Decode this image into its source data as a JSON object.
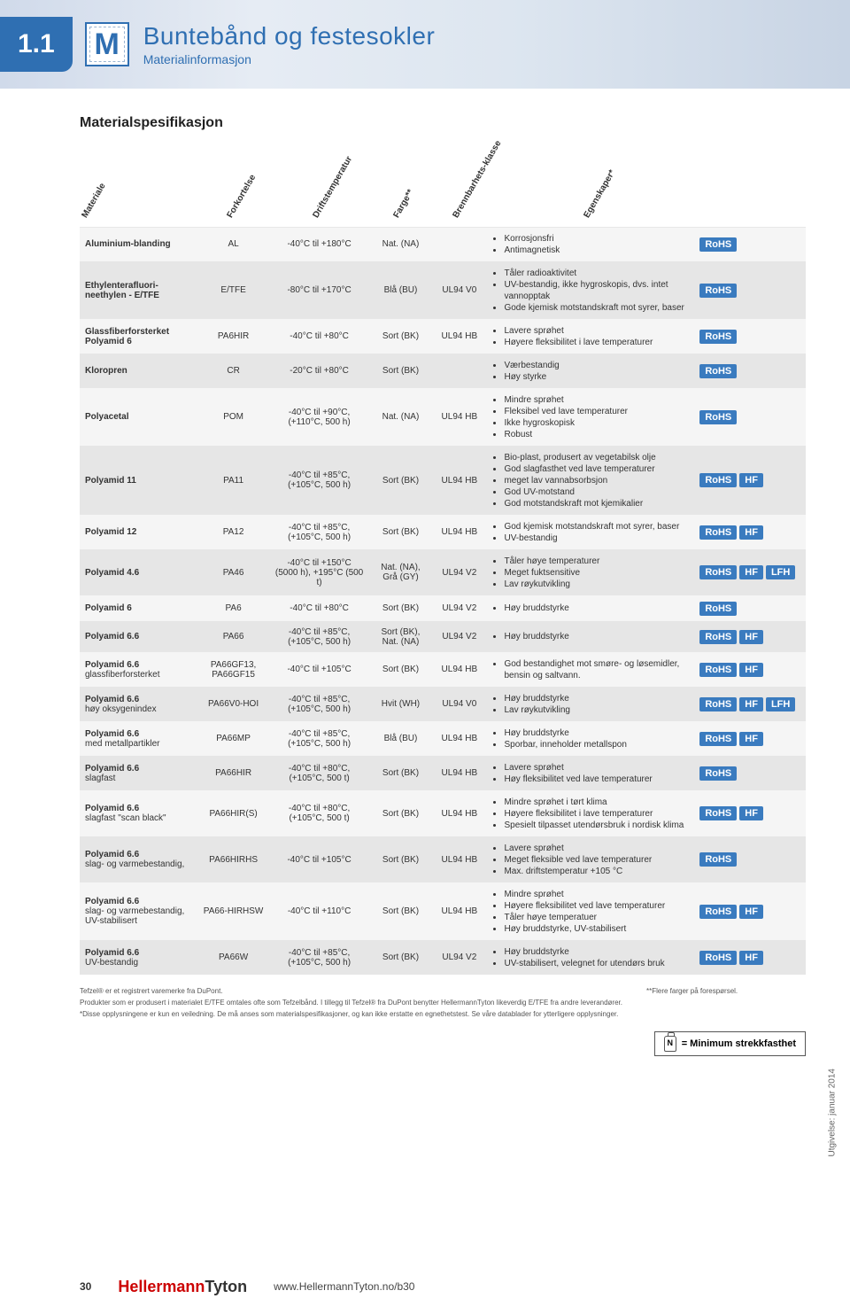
{
  "chapter": "1.1",
  "icon_letter": "M",
  "header": {
    "title": "Buntebånd og festesokler",
    "subtitle": "Materialinformasjon"
  },
  "section_title": "Materialspesifikasjon",
  "columns": {
    "materiale": "Materiale",
    "forkortelse": "Forkortelse",
    "driftstemperatur": "Driftstemperatur",
    "farge": "Farge**",
    "brennbarhet": "Brennbarhets-klasse",
    "egenskaper": "Egenskaper*"
  },
  "badges": {
    "rohs": "RoHS",
    "hf": "HF",
    "lfh": "LFH"
  },
  "rows": [
    {
      "shade": "a",
      "mat": "Aluminium-blanding",
      "fork": "AL",
      "drift": "-40°C til +180°C",
      "farge": "Nat. (NA)",
      "brenn": "",
      "egen": [
        "Korrosjonsfri",
        "Antimagnetisk"
      ],
      "b": [
        "rohs"
      ]
    },
    {
      "shade": "b",
      "mat": "Ethylenterafluori-neethylen - E/TFE",
      "fork": "E/TFE",
      "drift": "-80°C til +170°C",
      "farge": "Blå (BU)",
      "brenn": "UL94 V0",
      "egen": [
        "Tåler radioaktivitet",
        "UV-bestandig, ikke hygroskopis, dvs. intet vannopptak",
        "Gode kjemisk motstandskraft mot syrer, baser"
      ],
      "b": [
        "rohs"
      ]
    },
    {
      "shade": "a",
      "mat": "Glassfiberforsterket Polyamid 6",
      "fork": "PA6HIR",
      "drift": "-40°C til +80°C",
      "farge": "Sort (BK)",
      "brenn": "UL94 HB",
      "egen": [
        "Lavere sprøhet",
        "Høyere fleksibilitet i lave temperaturer"
      ],
      "b": [
        "rohs"
      ]
    },
    {
      "shade": "b",
      "mat": "Kloropren",
      "fork": "CR",
      "drift": "-20°C til +80°C",
      "farge": "Sort (BK)",
      "brenn": "",
      "egen": [
        "Værbestandig",
        "Høy styrke"
      ],
      "b": [
        "rohs"
      ]
    },
    {
      "shade": "a",
      "mat": "Polyacetal",
      "fork": "POM",
      "drift": "-40°C til +90°C, (+110°C, 500 h)",
      "farge": "Nat. (NA)",
      "brenn": "UL94 HB",
      "egen": [
        "Mindre sprøhet",
        "Fleksibel ved lave temperaturer",
        "Ikke hygroskopisk",
        "Robust"
      ],
      "b": [
        "rohs"
      ]
    },
    {
      "shade": "b",
      "mat": "Polyamid 11",
      "fork": "PA11",
      "drift": "-40°C til +85°C, (+105°C, 500 h)",
      "farge": "Sort (BK)",
      "brenn": "UL94 HB",
      "egen": [
        "Bio-plast, produsert av vegetabilsk olje",
        "God slagfasthet ved lave temperaturer",
        "meget lav vannabsorbsjon",
        "God UV-motstand",
        "God motstandskraft mot kjemikalier"
      ],
      "b": [
        "rohs",
        "hf"
      ]
    },
    {
      "shade": "a",
      "mat": "Polyamid 12",
      "fork": "PA12",
      "drift": "-40°C til +85°C, (+105°C, 500 h)",
      "farge": "Sort (BK)",
      "brenn": "UL94 HB",
      "egen": [
        "God kjemisk motstandskraft mot syrer, baser",
        "UV-bestandig"
      ],
      "b": [
        "rohs",
        "hf"
      ]
    },
    {
      "shade": "b",
      "mat": "Polyamid 4.6",
      "fork": "PA46",
      "drift": "-40°C til +150°C (5000 h), +195°C (500 t)",
      "farge": "Nat. (NA), Grå (GY)",
      "brenn": "UL94 V2",
      "egen": [
        "Tåler høye temperaturer",
        "Meget fuktsensitive",
        "Lav røykutvikling"
      ],
      "b": [
        "rohs",
        "hf",
        "lfh"
      ]
    },
    {
      "shade": "a",
      "mat": "Polyamid 6",
      "fork": "PA6",
      "drift": "-40°C til +80°C",
      "farge": "Sort (BK)",
      "brenn": "UL94 V2",
      "egen": [
        "Høy bruddstyrke"
      ],
      "b": [
        "rohs"
      ]
    },
    {
      "shade": "b",
      "mat": "Polyamid 6.6",
      "fork": "PA66",
      "drift": "-40°C til +85°C, (+105°C, 500 h)",
      "farge": "Sort (BK), Nat. (NA)",
      "brenn": "UL94 V2",
      "egen": [
        "Høy bruddstyrke"
      ],
      "b": [
        "rohs",
        "hf"
      ]
    },
    {
      "shade": "a",
      "mat": "Polyamid 6.6",
      "sub": "glassfiberforsterket",
      "fork": "PA66GF13, PA66GF15",
      "drift": "-40°C til +105°C",
      "farge": "Sort (BK)",
      "brenn": "UL94 HB",
      "egen": [
        "God bestandighet mot smøre- og løsemidler, bensin og saltvann."
      ],
      "b": [
        "rohs",
        "hf"
      ]
    },
    {
      "shade": "b",
      "mat": "Polyamid 6.6",
      "sub": "høy oksygenindex",
      "fork": "PA66V0-HOI",
      "drift": "-40°C til +85°C, (+105°C, 500 h)",
      "farge": "Hvit (WH)",
      "brenn": "UL94 V0",
      "egen": [
        "Høy bruddstyrke",
        "Lav røykutvikling"
      ],
      "b": [
        "rohs",
        "hf",
        "lfh"
      ]
    },
    {
      "shade": "a",
      "mat": "Polyamid 6.6",
      "sub": "med metallpartikler",
      "fork": "PA66MP",
      "drift": "-40°C til +85°C, (+105°C, 500 h)",
      "farge": "Blå (BU)",
      "brenn": "UL94 HB",
      "egen": [
        "Høy bruddstyrke",
        "Sporbar, inneholder metallspon"
      ],
      "b": [
        "rohs",
        "hf"
      ]
    },
    {
      "shade": "b",
      "mat": "Polyamid 6.6",
      "sub": "slagfast",
      "fork": "PA66HIR",
      "drift": "-40°C til +80°C, (+105°C, 500 t)",
      "farge": "Sort (BK)",
      "brenn": "UL94 HB",
      "egen": [
        "Lavere sprøhet",
        "Høy fleksibilitet ved lave temperaturer"
      ],
      "b": [
        "rohs"
      ]
    },
    {
      "shade": "a",
      "mat": "Polyamid 6.6",
      "sub": "slagfast \"scan black\"",
      "fork": "PA66HIR(S)",
      "drift": "-40°C til +80°C, (+105°C, 500 t)",
      "farge": "Sort (BK)",
      "brenn": "UL94 HB",
      "egen": [
        "Mindre sprøhet i tørt klima",
        "Høyere fleksibilitet i lave temperaturer",
        "Spesielt tilpasset utendørsbruk i nordisk klima"
      ],
      "b": [
        "rohs",
        "hf"
      ]
    },
    {
      "shade": "b",
      "mat": "Polyamid 6.6",
      "sub": "slag- og varmebestandig,",
      "fork": "PA66HIRHS",
      "drift": "-40°C til +105°C",
      "farge": "Sort (BK)",
      "brenn": "UL94 HB",
      "egen": [
        "Lavere sprøhet",
        "Meget fleksible ved lave temperaturer",
        "Max. driftstemperatur +105 °C"
      ],
      "b": [
        "rohs"
      ]
    },
    {
      "shade": "a",
      "mat": "Polyamid 6.6",
      "sub": "slag- og varmebestandig, UV-stabilisert",
      "fork": "PA66-HIRHSW",
      "drift": "-40°C til +110°C",
      "farge": "Sort (BK)",
      "brenn": "UL94 HB",
      "egen": [
        "Mindre sprøhet",
        "Høyere fleksibilitet ved lave temperaturer",
        "Tåler høye temperatuer",
        "Høy bruddstyrke, UV-stabilisert"
      ],
      "b": [
        "rohs",
        "hf"
      ]
    },
    {
      "shade": "b",
      "mat": "Polyamid 6.6",
      "sub": "UV-bestandig",
      "fork": "PA66W",
      "drift": "-40°C til +85°C, (+105°C, 500 h)",
      "farge": "Sort (BK)",
      "brenn": "UL94 V2",
      "egen": [
        "Høy bruddstyrke",
        "UV-stabilisert, velegnet for utendørs bruk"
      ],
      "b": [
        "rohs",
        "hf"
      ]
    }
  ],
  "footnotes": {
    "tefzel": "Tefzel® er et registrert varemerke fra DuPont.",
    "prod": "Produkter som er produsert i materialet E/TFE omtales ofte som Tefzelbånd. I tillegg til Tefzel® fra DuPont benytter HellermannTyton likeverdig E/TFE fra andre leverandører.",
    "star": "*Disse opplysningene er kun en veiledning. De må anses som materialspesifikasjoner, og kan ikke erstatte en egnethetstest. Se våre datablader for ytterligere opplysninger.",
    "farger": "**Flere farger på forespørsel."
  },
  "min_strek": "= Minimum strekkfasthet",
  "footer": {
    "page": "30",
    "brand1": "Hellermann",
    "brand2": "Tyton",
    "url": "www.HellermannTyton.no/b30",
    "issue": "Utgivelse: januar 2014"
  }
}
